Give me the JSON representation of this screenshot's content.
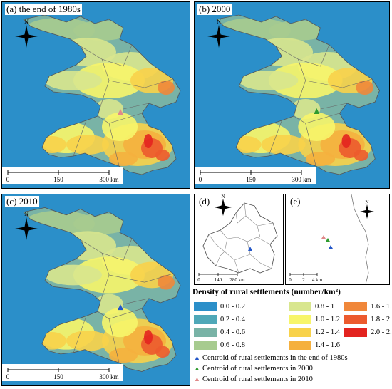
{
  "panels": {
    "a": {
      "label": "(a) the end of 1980s"
    },
    "b": {
      "label": "(b) 2000"
    },
    "c": {
      "label": "(c) 2010"
    },
    "d": {
      "label": "(d)"
    },
    "e": {
      "label": "(e)"
    }
  },
  "scale_main": {
    "t0": "0",
    "t1": "150",
    "t2": "300 km"
  },
  "scale_d": {
    "t0": "0",
    "t1": "140",
    "t2": "280 km"
  },
  "scale_e": {
    "t0": "0",
    "t1": "2",
    "t2": "4 km"
  },
  "north": "N",
  "legend": {
    "title": "Density of rural settlements (number/km²)",
    "classes": [
      {
        "label": "0.0 - 0.2",
        "color": "#2b8fc9"
      },
      {
        "label": "0.2 - 0.4",
        "color": "#4fa8b8"
      },
      {
        "label": "0.4 - 0.6",
        "color": "#79b3a6"
      },
      {
        "label": "0.6 - 0.8",
        "color": "#a7cb8f"
      },
      {
        "label": "0.8 - 1",
        "color": "#d8e68e"
      },
      {
        "label": "1.0 - 1.2",
        "color": "#f7f56a"
      },
      {
        "label": "1.2 - 1.4",
        "color": "#f8d24a"
      },
      {
        "label": "1.4 - 1.6",
        "color": "#f5b03e"
      },
      {
        "label": "1.6 - 1.8",
        "color": "#f0873a"
      },
      {
        "label": "1.8 - 2",
        "color": "#ec5a2e"
      },
      {
        "label": "2.0 - 2.2",
        "color": "#e3231f"
      }
    ],
    "centroids": [
      {
        "label": "Centroid of rural settlements in the end of 1980s",
        "color": "#2457c8"
      },
      {
        "label": "Centroid of rural settlements in 2000",
        "color": "#2e9b2e"
      },
      {
        "label": "Centroid of rural settlements in 2010",
        "color": "#e08a8a"
      }
    ]
  }
}
